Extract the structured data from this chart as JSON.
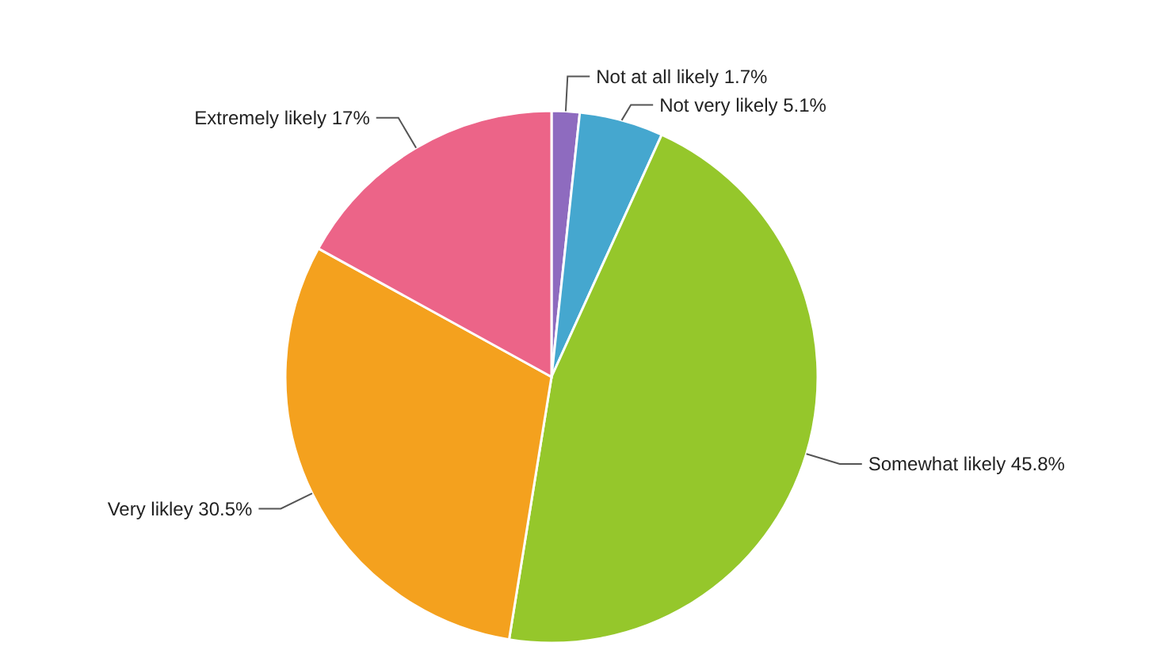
{
  "chart_data": {
    "type": "pie",
    "categories": [
      "Not at all likely",
      "Not very likely",
      "Somewhat likely",
      "Very likley",
      "Extremely likely"
    ],
    "values": [
      1.7,
      5.1,
      45.8,
      30.5,
      17
    ],
    "value_labels": [
      "1.7%",
      "5.1%",
      "45.8%",
      "30.5%",
      "17%"
    ],
    "colors": [
      "#8e6bbf",
      "#45a7cf",
      "#95c72b",
      "#f4a11e",
      "#ec6488"
    ]
  }
}
